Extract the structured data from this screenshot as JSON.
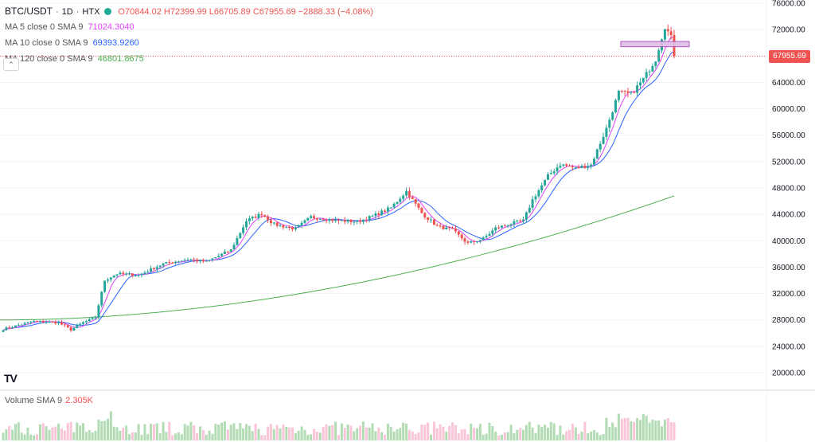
{
  "header": {
    "symbol": "BTC/USDT",
    "interval": "1D",
    "exchange": "HTX",
    "open": "O70844.02",
    "high": "H72399.99",
    "low": "L66705.89",
    "close": "C67955.69",
    "change": "−2888.33 (−4.08%)",
    "status_color": "#22ab94"
  },
  "indicators": [
    {
      "label": "MA 5 close 0 SMA 9",
      "value": "71024.3040",
      "color": "#e040fb"
    },
    {
      "label": "MA 10 close 0 SMA 9",
      "value": "69393.9260",
      "color": "#2962ff"
    },
    {
      "label": "MA 120 close 0 SMA 9",
      "value": "46801.8675",
      "color": "#4caf50"
    }
  ],
  "volume_legend": {
    "label": "Volume SMA 9",
    "value": "2.305K"
  },
  "last_price_tag": "67955.69",
  "logo": "TV",
  "colors": {
    "up": "#26a69a",
    "down": "#ef5350",
    "ma5": "#e040fb",
    "ma10": "#2962ff",
    "ma120": "#4caf50",
    "last_line": "#ef5350",
    "zone": "#e1bee7"
  },
  "chart_data": {
    "type": "candlestick",
    "y_axis_ticks": [
      "76000.00",
      "72000.00",
      "68000.00",
      "64000.00",
      "60000.00",
      "56000.00",
      "52000.00",
      "48000.00",
      "44000.00",
      "40000.00",
      "36000.00",
      "32000.00",
      "28000.00",
      "24000.00",
      "20000.00"
    ],
    "ylim": [
      17000,
      76500
    ],
    "grid": true,
    "close_anchors": [
      [
        0,
        26600
      ],
      [
        10,
        27800
      ],
      [
        18,
        27600
      ],
      [
        22,
        26500
      ],
      [
        26,
        27600
      ],
      [
        30,
        28400
      ],
      [
        33,
        34000
      ],
      [
        37,
        35000
      ],
      [
        44,
        34800
      ],
      [
        52,
        36500
      ],
      [
        60,
        37200
      ],
      [
        66,
        36800
      ],
      [
        74,
        38600
      ],
      [
        79,
        43000
      ],
      [
        84,
        44100
      ],
      [
        88,
        42500
      ],
      [
        95,
        41800
      ],
      [
        100,
        43600
      ],
      [
        108,
        43100
      ],
      [
        115,
        42900
      ],
      [
        120,
        43700
      ],
      [
        126,
        45000
      ],
      [
        131,
        47500
      ],
      [
        136,
        44200
      ],
      [
        141,
        42200
      ],
      [
        146,
        41600
      ],
      [
        151,
        39600
      ],
      [
        156,
        40300
      ],
      [
        160,
        41900
      ],
      [
        165,
        42600
      ],
      [
        169,
        43000
      ],
      [
        172,
        46200
      ],
      [
        177,
        49800
      ],
      [
        181,
        51600
      ],
      [
        186,
        51000
      ],
      [
        191,
        51500
      ],
      [
        196,
        57000
      ],
      [
        200,
        62500
      ],
      [
        204,
        62200
      ],
      [
        208,
        64500
      ],
      [
        212,
        67500
      ],
      [
        215,
        72500
      ],
      [
        217,
        70800
      ],
      [
        218,
        67955.69
      ]
    ],
    "ma120_start": 28000,
    "ma120_end": 46800,
    "resistance_zone": [
      69400,
      70200
    ]
  }
}
